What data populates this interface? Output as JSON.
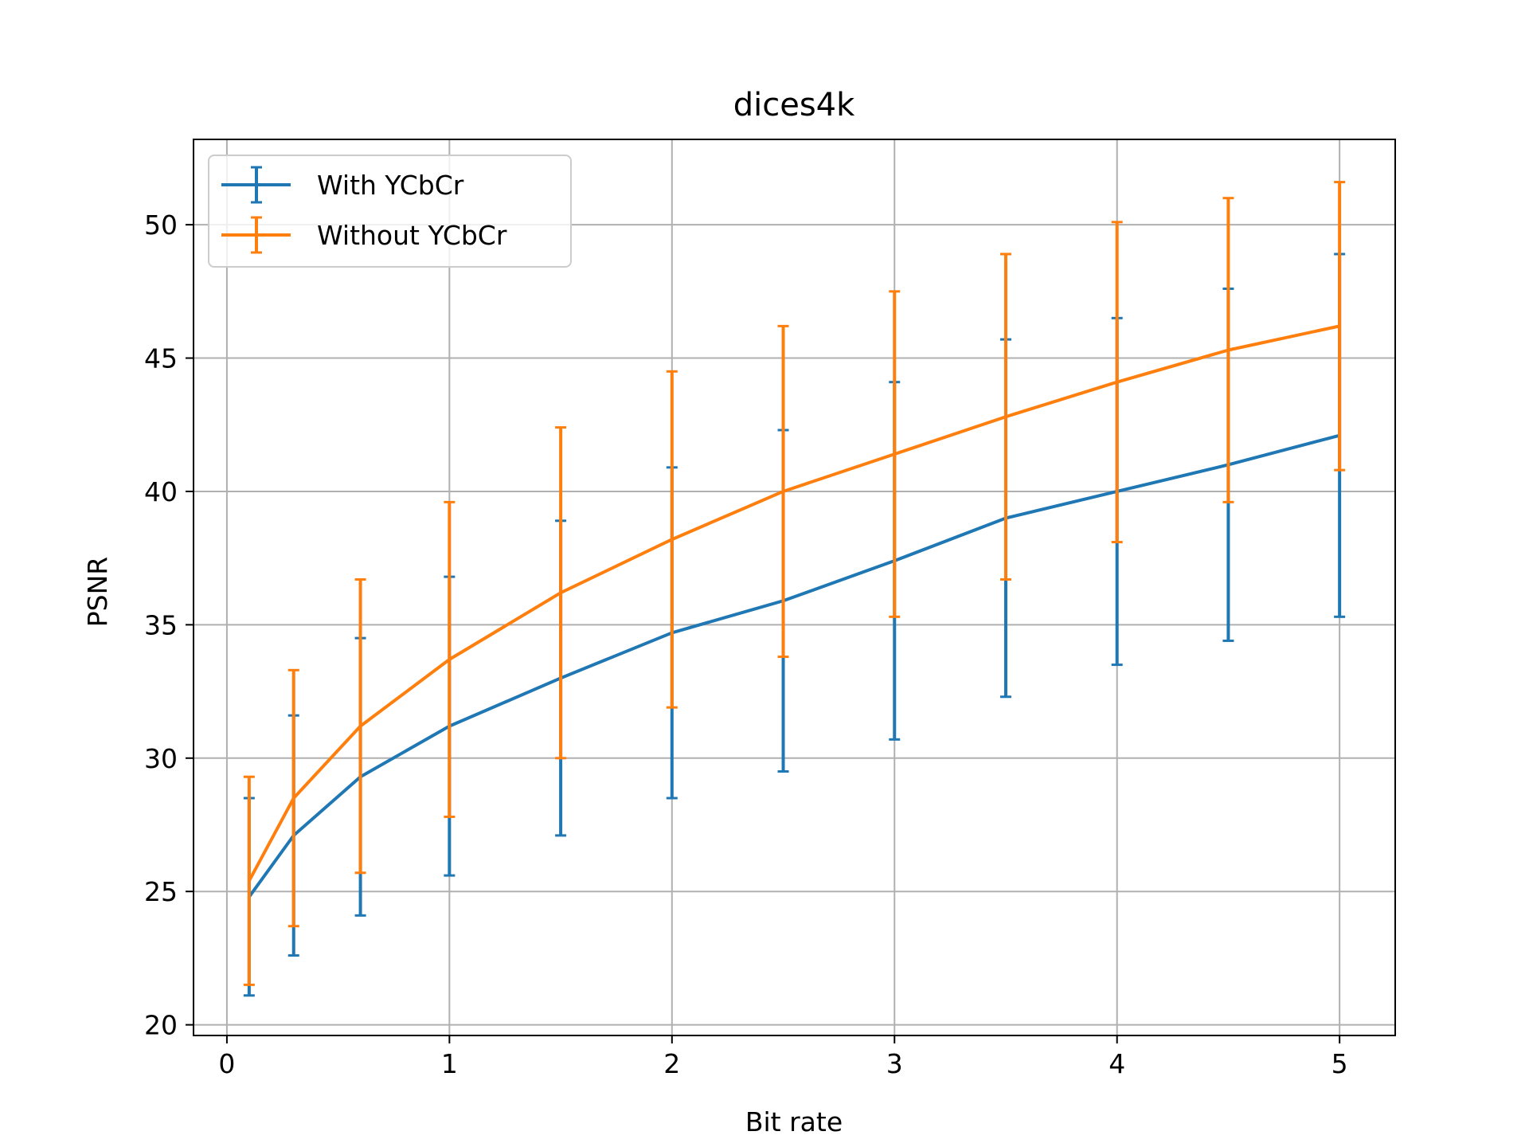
{
  "chart_data": {
    "type": "line",
    "title": "dices4k",
    "xlabel": "Bit rate",
    "ylabel": "PSNR",
    "xlim": [
      -0.15,
      5.25
    ],
    "ylim": [
      19.6,
      53.2
    ],
    "xticks": [
      0,
      1,
      2,
      3,
      4,
      5
    ],
    "xtick_labels": [
      "0",
      "1",
      "2",
      "3",
      "4",
      "5"
    ],
    "yticks": [
      20,
      25,
      30,
      35,
      40,
      45,
      50
    ],
    "ytick_labels": [
      "20",
      "25",
      "30",
      "35",
      "40",
      "45",
      "50"
    ],
    "grid": true,
    "legend_position": "upper-left",
    "x": [
      0.1,
      0.3,
      0.6,
      1.0,
      1.5,
      2.0,
      2.5,
      3.0,
      3.5,
      4.0,
      4.5,
      5.0
    ],
    "series": [
      {
        "name": "With YCbCr",
        "color": "#1f77b4",
        "values": [
          24.8,
          27.1,
          29.3,
          31.2,
          33.0,
          34.7,
          35.9,
          37.4,
          39.0,
          40.0,
          41.0,
          42.1
        ],
        "error": [
          3.7,
          4.5,
          5.2,
          5.6,
          5.9,
          6.2,
          6.4,
          6.7,
          6.7,
          6.5,
          6.6,
          6.8
        ]
      },
      {
        "name": "Without YCbCr",
        "color": "#ff7f0e",
        "values": [
          25.4,
          28.5,
          31.2,
          33.7,
          36.2,
          38.2,
          40.0,
          41.4,
          42.8,
          44.1,
          45.3,
          46.2
        ],
        "error": [
          3.9,
          4.8,
          5.5,
          5.9,
          6.2,
          6.3,
          6.2,
          6.1,
          6.1,
          6.0,
          5.7,
          5.4
        ]
      }
    ]
  }
}
